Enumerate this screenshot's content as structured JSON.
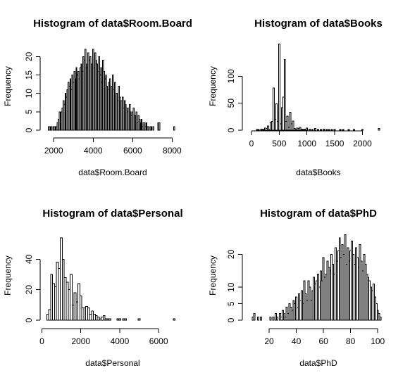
{
  "chart_data": [
    {
      "type": "bar",
      "title": "Histogram of data$Room.Board",
      "xlabel": "data$Room.Board",
      "ylabel": "Frequency",
      "xlim": [
        1600,
        8200
      ],
      "ylim": [
        0,
        22
      ],
      "xticks": [
        2000,
        4000,
        6000,
        8000
      ],
      "xtick_labels": [
        "2000",
        "4000",
        "6000",
        "8000"
      ],
      "yticks": [
        0,
        5,
        10,
        15,
        20
      ],
      "ytick_labels": [
        "0",
        "5",
        "10",
        "15",
        "20"
      ],
      "bin_width": 50,
      "x": [
        1750,
        1800,
        1850,
        1900,
        1950,
        2000,
        2050,
        2100,
        2150,
        2200,
        2250,
        2300,
        2350,
        2400,
        2450,
        2500,
        2550,
        2600,
        2650,
        2700,
        2750,
        2800,
        2850,
        2900,
        2950,
        3000,
        3050,
        3100,
        3150,
        3200,
        3250,
        3300,
        3350,
        3400,
        3450,
        3500,
        3550,
        3600,
        3650,
        3700,
        3750,
        3800,
        3850,
        3900,
        3950,
        4000,
        4050,
        4100,
        4150,
        4200,
        4250,
        4300,
        4350,
        4400,
        4450,
        4500,
        4550,
        4600,
        4650,
        4700,
        4750,
        4800,
        4850,
        4900,
        4950,
        5000,
        5050,
        5100,
        5150,
        5200,
        5250,
        5300,
        5350,
        5400,
        5450,
        5500,
        5550,
        5600,
        5650,
        5700,
        5750,
        5800,
        5850,
        5900,
        5950,
        6000,
        6050,
        6100,
        6150,
        6200,
        6250,
        6300,
        6350,
        6400,
        6450,
        6500,
        6550,
        6600,
        6650,
        6700,
        6750,
        6800,
        6850,
        6900,
        6950,
        7000,
        7050,
        7100,
        7150,
        7200,
        7250,
        7300,
        7350,
        7400,
        7450,
        7500,
        7550,
        7600,
        7650,
        7700,
        7750,
        7800,
        7850,
        7900,
        7950,
        8000,
        8050,
        8100
      ],
      "values": [
        1,
        1,
        1,
        1,
        0,
        1,
        1,
        1,
        1,
        2,
        3,
        5,
        4,
        5,
        6,
        8,
        7,
        10,
        9,
        11,
        13,
        12,
        14,
        11,
        15,
        13,
        16,
        14,
        17,
        15,
        16,
        14,
        17,
        18,
        16,
        20,
        19,
        22,
        18,
        17,
        21,
        19,
        20,
        16,
        18,
        22,
        17,
        21,
        19,
        18,
        16,
        20,
        15,
        17,
        13,
        19,
        16,
        14,
        15,
        12,
        11,
        13,
        14,
        10,
        12,
        15,
        11,
        13,
        9,
        10,
        8,
        12,
        9,
        7,
        8,
        9,
        6,
        8,
        7,
        6,
        5,
        6,
        7,
        5,
        4,
        5,
        6,
        4,
        3,
        5,
        2,
        4,
        3,
        2,
        3,
        1,
        2,
        2,
        1,
        2,
        1,
        1,
        0,
        1,
        1,
        0,
        1,
        0,
        0,
        0,
        0,
        2,
        2,
        0,
        0,
        0,
        0,
        0,
        0,
        0,
        0,
        0,
        0,
        0,
        0,
        0,
        0,
        1
      ]
    },
    {
      "type": "bar",
      "title": "Histogram of data$Books",
      "xlabel": "data$Books",
      "ylabel": "Frequency",
      "xlim": [
        0,
        2350
      ],
      "ylim": [
        0,
        150
      ],
      "xticks": [
        0,
        500,
        1000,
        1500,
        2000
      ],
      "xtick_labels": [
        "0",
        "500",
        "1000",
        "1500",
        "2000"
      ],
      "yticks": [
        0,
        50,
        100
      ],
      "ytick_labels": [
        "0",
        "50",
        "100"
      ],
      "bin_width": 25,
      "x": [
        100,
        125,
        150,
        175,
        200,
        225,
        250,
        275,
        300,
        325,
        350,
        375,
        400,
        425,
        450,
        475,
        500,
        525,
        550,
        575,
        600,
        625,
        650,
        675,
        700,
        725,
        750,
        775,
        800,
        825,
        850,
        875,
        900,
        925,
        950,
        975,
        1000,
        1050,
        1100,
        1150,
        1200,
        1250,
        1300,
        1350,
        1400,
        1450,
        1500,
        1550,
        1600,
        1650,
        1700,
        1750,
        1800,
        1850,
        1900,
        1950,
        2000,
        2050,
        2100,
        2150,
        2200,
        2250,
        2300
      ],
      "values": [
        1,
        1,
        0,
        2,
        2,
        1,
        4,
        3,
        8,
        2,
        15,
        16,
        78,
        20,
        49,
        16,
        160,
        12,
        42,
        61,
        131,
        16,
        26,
        5,
        33,
        12,
        17,
        3,
        2,
        4,
        3,
        5,
        2,
        1,
        2,
        2,
        4,
        2,
        1,
        3,
        1,
        1,
        2,
        1,
        1,
        1,
        1,
        0,
        1,
        1,
        0,
        1,
        0,
        1,
        0,
        0,
        1,
        0,
        0,
        0,
        0,
        0,
        3
      ]
    },
    {
      "type": "bar",
      "title": "Histogram of data$Personal",
      "xlabel": "data$Personal",
      "ylabel": "Frequency",
      "xlim": [
        200,
        6900
      ],
      "ylim": [
        0,
        54
      ],
      "xticks": [
        0,
        2000,
        4000,
        6000
      ],
      "xtick_labels": [
        "0",
        "2000",
        "4000",
        "6000"
      ],
      "yticks": [
        0,
        20,
        40
      ],
      "ytick_labels": [
        "0",
        "20",
        "40"
      ],
      "bin_width": 100,
      "x": [
        300,
        400,
        500,
        600,
        700,
        800,
        900,
        1000,
        1100,
        1200,
        1300,
        1400,
        1500,
        1600,
        1700,
        1800,
        1900,
        2000,
        2100,
        2200,
        2300,
        2400,
        2500,
        2600,
        2700,
        2800,
        2900,
        3000,
        3100,
        3200,
        3300,
        3400,
        3500,
        3600,
        3700,
        3800,
        3900,
        4000,
        4100,
        4200,
        4300,
        4400,
        4500,
        4600,
        4700,
        4800,
        4900,
        5000,
        5100,
        5200,
        5300,
        5400,
        5500,
        5600,
        5700,
        5800,
        5900,
        6000,
        6100,
        6200,
        6300,
        6400,
        6500,
        6600,
        6700,
        6800
      ],
      "values": [
        4,
        7,
        30,
        24,
        22,
        38,
        34,
        54,
        40,
        28,
        25,
        20,
        30,
        10,
        18,
        12,
        24,
        16,
        8,
        8,
        9,
        8,
        4,
        6,
        4,
        3,
        2,
        1,
        2,
        3,
        1,
        1,
        1,
        0,
        0,
        0,
        1,
        1,
        0,
        1,
        1,
        0,
        0,
        0,
        0,
        0,
        0,
        1,
        0,
        0,
        0,
        0,
        0,
        0,
        0,
        0,
        0,
        0,
        0,
        0,
        0,
        0,
        0,
        0,
        0,
        1
      ]
    },
    {
      "type": "bar",
      "title": "Histogram of data$PhD",
      "xlabel": "data$PhD",
      "ylabel": "Frequency",
      "xlim": [
        7,
        103
      ],
      "ylim": [
        0,
        25
      ],
      "xticks": [
        20,
        40,
        60,
        80,
        100
      ],
      "xtick_labels": [
        "20",
        "40",
        "60",
        "80",
        "100"
      ],
      "yticks": [
        0,
        5,
        10,
        20
      ],
      "ytick_labels": [
        "0",
        "5",
        "10",
        "20"
      ],
      "bin_width": 1,
      "x": [
        8,
        9,
        10,
        11,
        12,
        13,
        14,
        15,
        16,
        17,
        18,
        19,
        20,
        21,
        22,
        23,
        24,
        25,
        26,
        27,
        28,
        29,
        30,
        31,
        32,
        33,
        34,
        35,
        36,
        37,
        38,
        39,
        40,
        41,
        42,
        43,
        44,
        45,
        46,
        47,
        48,
        49,
        50,
        51,
        52,
        53,
        54,
        55,
        56,
        57,
        58,
        59,
        60,
        61,
        62,
        63,
        64,
        65,
        66,
        67,
        68,
        69,
        70,
        71,
        72,
        73,
        74,
        75,
        76,
        77,
        78,
        79,
        80,
        81,
        82,
        83,
        84,
        85,
        86,
        87,
        88,
        89,
        90,
        91,
        92,
        93,
        94,
        95,
        96,
        97,
        98,
        99,
        100,
        101,
        102
      ],
      "values": [
        1,
        2,
        0,
        0,
        1,
        0,
        1,
        0,
        0,
        0,
        0,
        0,
        0,
        1,
        0,
        1,
        0,
        2,
        1,
        0,
        2,
        1,
        3,
        2,
        1,
        4,
        2,
        5,
        4,
        3,
        6,
        5,
        7,
        4,
        8,
        6,
        9,
        5,
        12,
        8,
        6,
        12,
        10,
        6,
        9,
        13,
        11,
        12,
        14,
        10,
        15,
        12,
        19,
        13,
        14,
        18,
        16,
        15,
        20,
        17,
        14,
        22,
        18,
        21,
        25,
        19,
        23,
        20,
        26,
        17,
        22,
        18,
        21,
        24,
        20,
        17,
        22,
        19,
        16,
        23,
        18,
        15,
        20,
        17,
        14,
        13,
        12,
        10,
        9,
        11,
        7,
        5,
        3,
        2,
        1
      ]
    }
  ]
}
